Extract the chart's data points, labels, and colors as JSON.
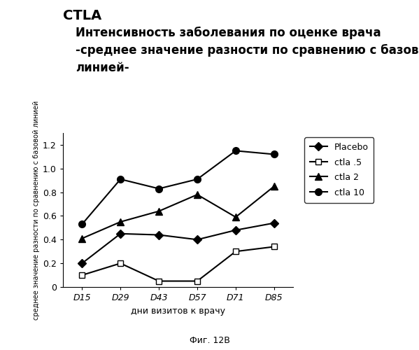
{
  "title_main": "CTLA",
  "title_line1": "Интенсивность заболевания по оценке врача",
  "title_line2": "-среднее значение разности по сравнению с базовой",
  "title_line3": "линией-",
  "xlabel": "дни визитов к врачу",
  "ylabel": "среднее значение разности по сравнению с базовой линией",
  "caption": "Фиг. 12B",
  "x_labels": [
    "D15",
    "D29",
    "D43",
    "D57",
    "D71",
    "D85"
  ],
  "series": [
    {
      "label": "Placebo",
      "values": [
        0.2,
        0.45,
        0.44,
        0.4,
        0.48,
        0.54
      ],
      "color": "#000000",
      "marker": "D",
      "markersize": 6,
      "markerfacecolor": "#000000"
    },
    {
      "label": "ctla .5",
      "values": [
        0.1,
        0.2,
        0.05,
        0.05,
        0.3,
        0.34
      ],
      "color": "#000000",
      "marker": "s",
      "markersize": 6,
      "markerfacecolor": "#ffffff"
    },
    {
      "label": "ctla 2",
      "values": [
        0.41,
        0.55,
        0.64,
        0.78,
        0.59,
        0.85
      ],
      "color": "#000000",
      "marker": "^",
      "markersize": 7,
      "markerfacecolor": "#000000"
    },
    {
      "label": "ctla 10",
      "values": [
        0.53,
        0.91,
        0.83,
        0.91,
        1.15,
        1.12
      ],
      "color": "#000000",
      "marker": "o",
      "markersize": 7,
      "markerfacecolor": "#000000"
    }
  ],
  "ylim": [
    0,
    1.3
  ],
  "yticks": [
    0,
    0.2,
    0.4,
    0.6,
    0.8,
    1.0,
    1.2
  ],
  "background_color": "#ffffff",
  "title_main_fontsize": 14,
  "title_fontsize": 12,
  "axis_label_fontsize": 9,
  "tick_fontsize": 9,
  "legend_fontsize": 9,
  "caption_fontsize": 9,
  "ylabel_fontsize": 7
}
